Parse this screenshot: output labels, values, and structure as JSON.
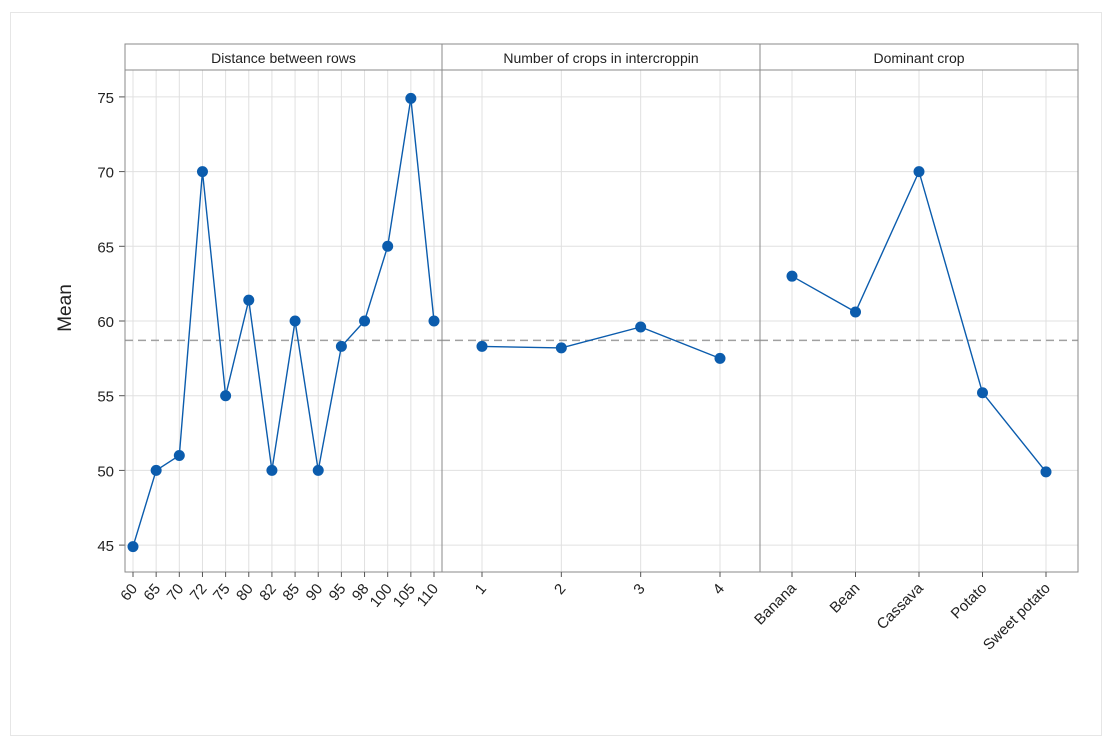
{
  "chart_data": {
    "type": "line",
    "ylabel": "Mean",
    "ylim": [
      43.2,
      76.8
    ],
    "yticks": [
      45,
      50,
      55,
      60,
      65,
      70,
      75
    ],
    "reference_line": 58.7,
    "grid": true,
    "colors": {
      "series": "#0b5cad",
      "reference": "#a0a0a0",
      "grid": "#e0e0e0"
    },
    "panels": [
      {
        "title": "Distance between rows",
        "categories": [
          "60",
          "65",
          "70",
          "72",
          "75",
          "80",
          "82",
          "85",
          "90",
          "95",
          "98",
          "100",
          "105",
          "110"
        ],
        "values": [
          44.9,
          50.0,
          51.0,
          70.0,
          55.0,
          61.4,
          50.0,
          60.0,
          50.0,
          58.3,
          60.0,
          65.0,
          74.9,
          60.0
        ]
      },
      {
        "title": "Number of crops in intercroppin",
        "categories": [
          "1",
          "2",
          "3",
          "4"
        ],
        "values": [
          58.3,
          58.2,
          59.6,
          57.5
        ]
      },
      {
        "title": "Dominant crop",
        "categories": [
          "Banana",
          "Bean",
          "Cassava",
          "Potato",
          "Sweet potato"
        ],
        "values": [
          63.0,
          60.6,
          70.0,
          55.2,
          49.9
        ]
      }
    ]
  }
}
